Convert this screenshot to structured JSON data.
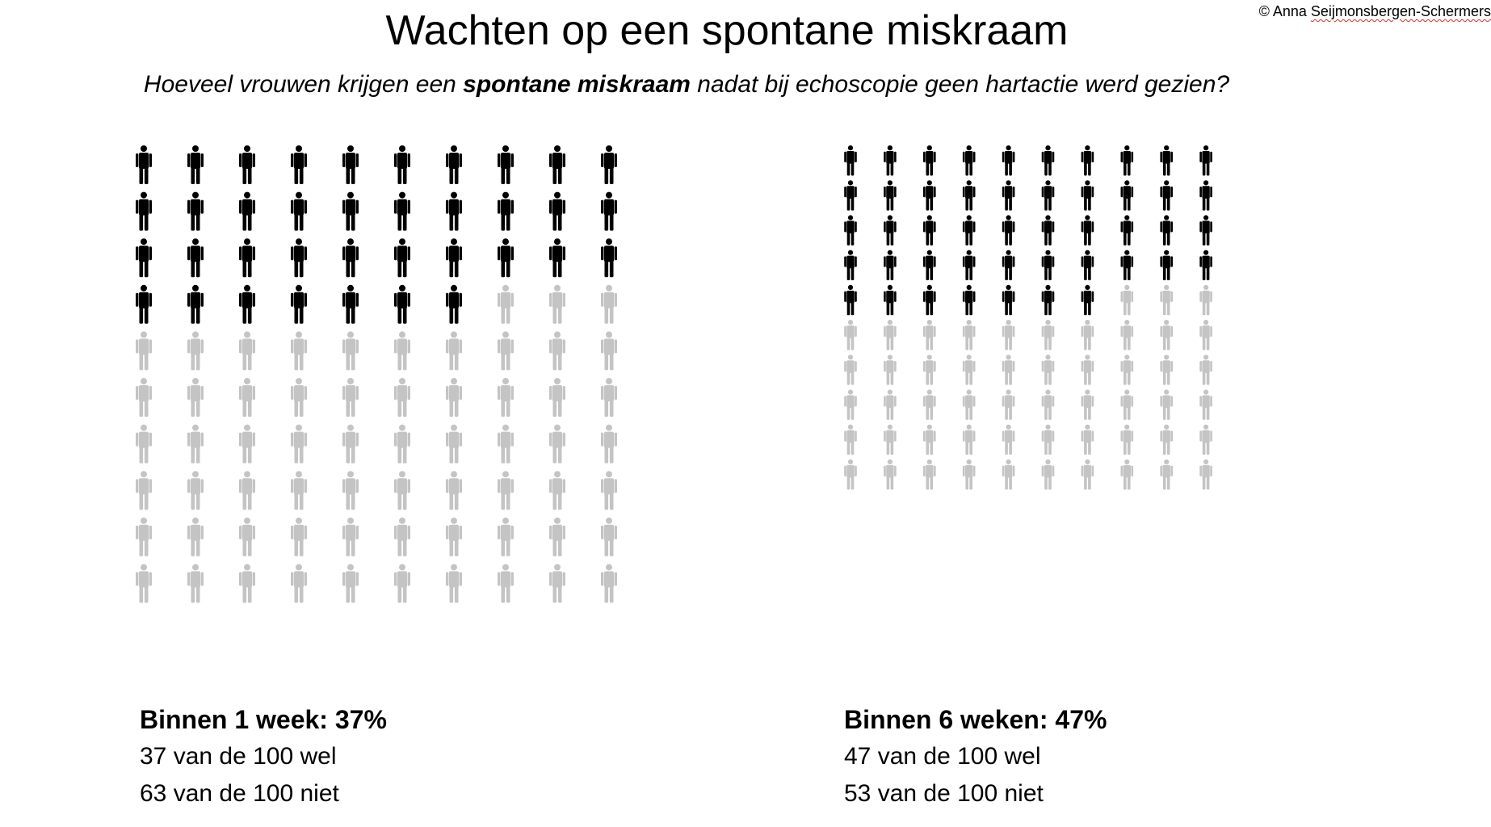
{
  "copyright": {
    "prefix": "© Anna ",
    "name": "Seijmonsbergen-Schermers"
  },
  "title": "Wachten op een spontane miskraam",
  "subtitle": {
    "before": "Hoeveel vrouwen krijgen een ",
    "bold": "spontane miskraam",
    "after": " nadat bij echoscopie geen hartactie werd gezien?"
  },
  "colors": {
    "highlighted": "#000000",
    "remaining": "#c4c4c4"
  },
  "icon": "person-icon",
  "chart_data": [
    {
      "type": "pictograph",
      "columns": 10,
      "rows": 10,
      "total": 100,
      "highlighted": 37,
      "remaining": 63,
      "fill_order": "column-by-column within each row, top row first"
    },
    {
      "type": "pictograph",
      "columns": 10,
      "rows": 10,
      "total": 100,
      "highlighted": 47,
      "remaining": 53,
      "fill_order": "column-by-column within each row, top row first"
    }
  ],
  "stats": [
    {
      "heading": "Binnen 1 week: 37%",
      "yes": "37 van de 100 wel",
      "no": "63 van de 100 niet"
    },
    {
      "heading": "Binnen 6 weken: 47%",
      "yes": "47 van de 100 wel",
      "no": "53 van de 100 niet"
    }
  ]
}
